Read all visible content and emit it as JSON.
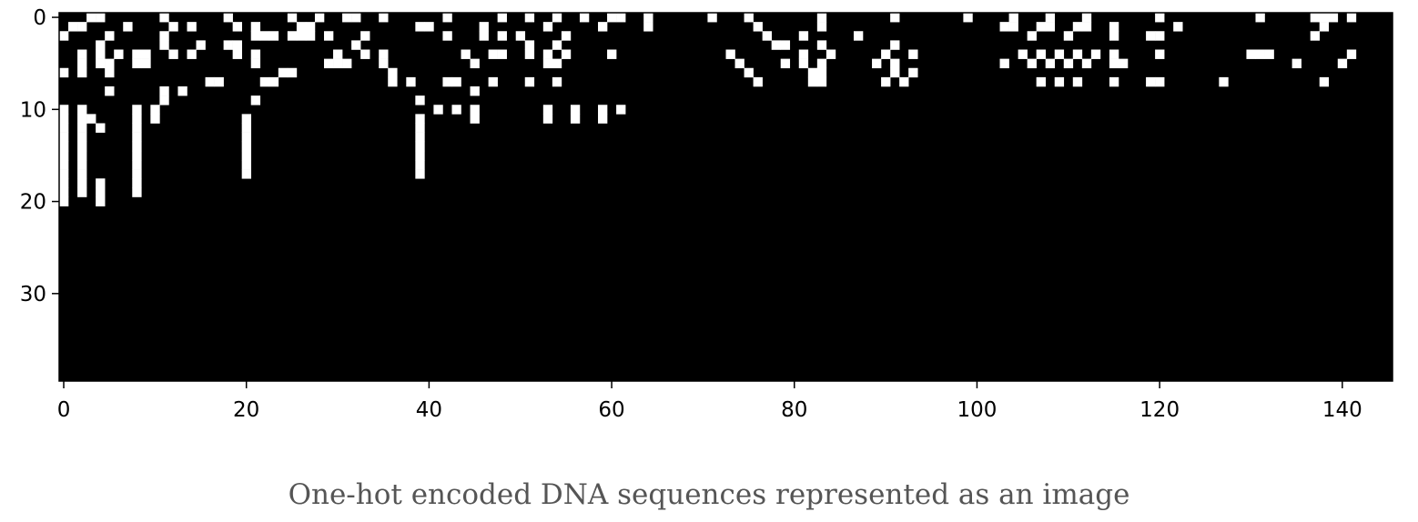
{
  "caption": "One-hot encoded DNA sequences represented as an image",
  "chart_data": {
    "type": "heatmap",
    "title": "",
    "xlabel": "",
    "ylabel": "",
    "colormap": "gray",
    "colors": {
      "zero": "#000000",
      "one": "#ffffff"
    },
    "n_rows": 40,
    "n_cols": 146,
    "xlim": [
      -0.5,
      145.5
    ],
    "ylim": [
      39.5,
      -0.5
    ],
    "xticks": [
      0,
      20,
      40,
      60,
      80,
      100,
      120,
      140
    ],
    "xtick_labels": [
      "0",
      "20",
      "40",
      "60",
      "80",
      "100",
      "120",
      "140"
    ],
    "yticks": [
      0,
      10,
      20,
      30
    ],
    "ytick_labels": [
      "0",
      "10",
      "20",
      "30"
    ],
    "rows": [
      "000110000001000000100000010010011001000000100000100100100100110010000001000100000001000000010000000100001000100010000000100000000001000001110100",
      "011000010000101000010100001100000000000110000010000001000001000010000000000010000001000000000000000000011001100110010000001000000000000000100000",
      "100001000001000000000111011101000100000000100010101000010000000000000000000001000100000100000000000000000010001000010001100000000000000001000000",
      "000010000001000100110000000000001000000000000000000100100000000000000000000000110001000000010000000000000000000000000000000000000000000000000000",
      "001010101100101000010100000000100101000000001001100101010000100000000000010000000100100000100100000000000101010101010000100000000011100000000100",
      "001011001100000000000100000001110001000000000100000001100000000000000000001000010101000001010000000000010010101010011000000000000000000100001000",
      "101001000000000000000000110000000000100000000000000000000000000000000000000100000011000000010100000000000000000000000000000000000000000000000000",
      "000000000000000011000011000000000000101000110001000100100000000000000000000010000011000000101000000000000001010100010001100000010000000000100000",
      "000001000001010000000000000000000000000000000100000000000000000000000000000000000000000000000000000000000000000000000000000000000000000000000000",
      "000000000001000000000100000000000000000100000000000000000000000000000000000000000000000000000000000000000000000000000000000000000000000000000000",
      "101000001010000000000000000000000000000001010100000001001001010000000000000000000000000000000000000000000000000000000000000000000000000000000000",
      "101100001010000000001000000000000000000100000100000001001001000000000000000000000000000000000000000000000000000000000000000000000000000000000000",
      "101010001000000000001000000000000000000100000000000000000000000000000000000000000000000000000000000000000000000000000000000000000000000000000000",
      "101000001000000000001000000000000000000100000000000000000000000000000000000000000000000000000000000000000000000000000000000000000000000000000000",
      "101000001000000000001000000000000000000100000000000000000000000000000000000000000000000000000000000000000000000000000000000000000000000000000000",
      "101000001000000000001000000000000000000100000000000000000000000000000000000000000000000000000000000000000000000000000000000000000000000000000000",
      "101000001000000000001000000000000000000100000000000000000000000000000000000000000000000000000000000000000000000000000000000000000000000000000000",
      "101000001000000000001000000000000000000100000000000000000000000000000000000000000000000000000000000000000000000000000000000000000000000000000000",
      "101010001000000000000000000000000000000000000000000000000000000000000000000000000000000000000000000000000000000000000000000000000000000000000000",
      "101010001000000000000000000000000000000000000000000000000000000000000000000000000000000000000000000000000000000000000000000000000000000000000000",
      "100010000000000000000000000000000000000000000000000000000000000000000000000000000000000000000000000000000000000000000000000000000000000000000000",
      "000000000000000000000000000000000000000000000000000000000000000000000000000000000000000000000000000000000000000000000000000000000000000000000000",
      "000000000000000000000000000000000000000000000000000000000000000000000000000000000000000000000000000000000000000000000000000000000000000000000000",
      "000000000000000000000000000000000000000000000000000000000000000000000000000000000000000000000000000000000000000000000000000000000000000000000000",
      "000000000000000000000000000000000000000000000000000000000000000000000000000000000000000000000000000000000000000000000000000000000000000000000000",
      "000000000000000000000000000000000000000000000000000000000000000000000000000000000000000000000000000000000000000000000000000000000000000000000000",
      "000000000000000000000000000000000000000000000000000000000000000000000000000000000000000000000000000000000000000000000000000000000000000000000000",
      "000000000000000000000000000000000000000000000000000000000000000000000000000000000000000000000000000000000000000000000000000000000000000000000000",
      "000000000000000000000000000000000000000000000000000000000000000000000000000000000000000000000000000000000000000000000000000000000000000000000000",
      "000000000000000000000000000000000000000000000000000000000000000000000000000000000000000000000000000000000000000000000000000000000000000000000000",
      "000000000000000000000000000000000000000000000000000000000000000000000000000000000000000000000000000000000000000000000000000000000000000000000000",
      "000000000000000000000000000000000000000000000000000000000000000000000000000000000000000000000000000000000000000000000000000000000000000000000000",
      "000000000000000000000000000000000000000000000000000000000000000000000000000000000000000000000000000000000000000000000000000000000000000000000000",
      "000000000000000000000000000000000000000000000000000000000000000000000000000000000000000000000000000000000000000000000000000000000000000000000000",
      "000000000000000000000000000000000000000000000000000000000000000000000000000000000000000000000000000000000000000000000000000000000000000000000000",
      "000000000000000000000000000000000000000000000000000000000000000000000000000000000000000000000000000000000000000000000000000000000000000000000000",
      "000000000000000000000000000000000000000000000000000000000000000000000000000000000000000000000000000000000000000000000000000000000000000000000000",
      "000000000000000000000000000000000000000000000000000000000000000000000000000000000000000000000000000000000000000000000000000000000000000000000000",
      "000000000000000000000000000000000000000000000000000000000000000000000000000000000000000000000000000000000000000000000000000000000000000000000000",
      "000000000000000000000000000000000000000000000000000000000000000000000000000000000000000000000000000000000000000000000000000000000000000000000000"
    ]
  }
}
